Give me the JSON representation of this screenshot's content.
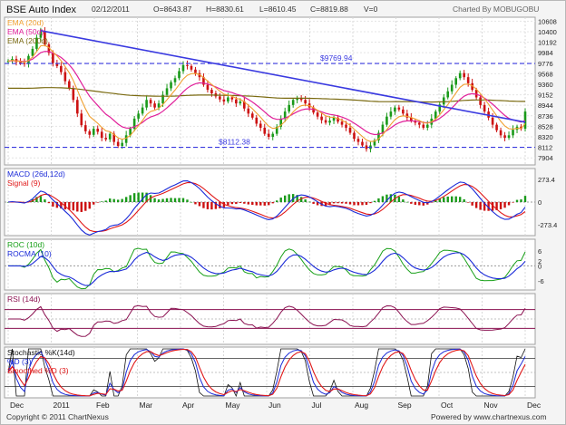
{
  "header": {
    "symbol": "BSE Auto Index",
    "date": "02/12/2011",
    "open": "O=8643.87",
    "high": "H=8830.61",
    "low": "L=8610.45",
    "close": "C=8819.88",
    "volume": "V=0",
    "charted_by": "Charted By MOBUGOBU"
  },
  "footer": {
    "copyright": "Copyright © 2011 ChartNexus",
    "powered": "Powered by www.chartnexus.com"
  },
  "colors": {
    "candle_up": "#1a9a1a",
    "candle_down": "#cc1111",
    "ema20": "#f0a030",
    "ema50": "#e0209a",
    "ema200": "#7a6a10",
    "trendline": "#3a3ae0",
    "support": "#3a3ae0",
    "macd": "#1a2ad8",
    "signal": "#e01818",
    "roc": "#18a018",
    "rocma": "#1a2ad8",
    "rsi": "#8a1050",
    "stoch_k": "#111111",
    "stoch_d": "#1a2ad8",
    "stoch_smooth": "#e01818"
  },
  "chart_data": {
    "type": "line",
    "x_month_labels": [
      "Dec",
      "2011",
      "Feb",
      "Mar",
      "Apr",
      "May",
      "Jun",
      "Jul",
      "Aug",
      "Sep",
      "Oct",
      "Nov",
      "Dec"
    ],
    "main": {
      "legend": [
        "EMA (20d)",
        "EMA (50d)",
        "EMA (200d)"
      ],
      "y_ticks": [
        10608,
        10400,
        10192,
        9984,
        9776,
        9568,
        9360,
        9152,
        8944,
        8736,
        8528,
        8320,
        8112,
        7904
      ],
      "ylim": [
        7800,
        10650
      ],
      "annotations": [
        {
          "label": "$9769.94",
          "value": 9769.94
        },
        {
          "label": "$8112.38",
          "value": 8112.38
        }
      ],
      "trendline": {
        "from_value": 10420,
        "to_value": 8610
      },
      "close": [
        9820,
        9860,
        9800,
        9780,
        9760,
        9920,
        10060,
        10280,
        10400,
        10150,
        9980,
        9780,
        9720,
        9600,
        9420,
        9280,
        9050,
        8780,
        8550,
        8430,
        8360,
        8480,
        8420,
        8300,
        8270,
        8380,
        8220,
        8140,
        8200,
        8350,
        8480,
        8680,
        8780,
        8900,
        9050,
        8980,
        8900,
        8980,
        9150,
        9280,
        9400,
        9480,
        9620,
        9740,
        9720,
        9650,
        9580,
        9500,
        9350,
        9250,
        9180,
        9120,
        9060,
        9020,
        9100,
        9060,
        8980,
        9020,
        8880,
        8780,
        8700,
        8580,
        8500,
        8380,
        8320,
        8380,
        8520,
        8680,
        8820,
        8950,
        9050,
        9080,
        9050,
        8980,
        8900,
        8800,
        8720,
        8650,
        8600,
        8640,
        8700,
        8620,
        8560,
        8500,
        8400,
        8280,
        8220,
        8150,
        8080,
        8150,
        8250,
        8400,
        8560,
        8720,
        8820,
        8900,
        8860,
        8780,
        8700,
        8640,
        8600,
        8560,
        8500,
        8560,
        8680,
        8820,
        8960,
        9100,
        9220,
        9350,
        9480,
        9580,
        9500,
        9380,
        9250,
        9100,
        8950,
        8820,
        8700,
        8560,
        8450,
        8350,
        8300,
        8350,
        8460,
        8520,
        8480,
        8820
      ]
    },
    "macd": {
      "legend": [
        "MACD (26d,12d)",
        "Signal (9)"
      ],
      "y_ticks": [
        273.4,
        0,
        -273.4
      ],
      "ylim": [
        -380,
        380
      ]
    },
    "roc": {
      "legend": [
        "ROC (10d)",
        "ROCMA (10)"
      ],
      "y_ticks": [
        6,
        2,
        0,
        -6
      ],
      "ylim": [
        -9,
        10
      ]
    },
    "rsi": {
      "legend": [
        "RSI (14d)"
      ],
      "levels": [
        30,
        50,
        70
      ],
      "ylim": [
        0,
        100
      ]
    },
    "stochastic": {
      "legend": [
        "Stochastic %K(14d)",
        "%D (3)",
        "Smoothed %D (3)"
      ],
      "levels": [
        20,
        50,
        80
      ],
      "ylim": [
        0,
        100
      ]
    }
  }
}
